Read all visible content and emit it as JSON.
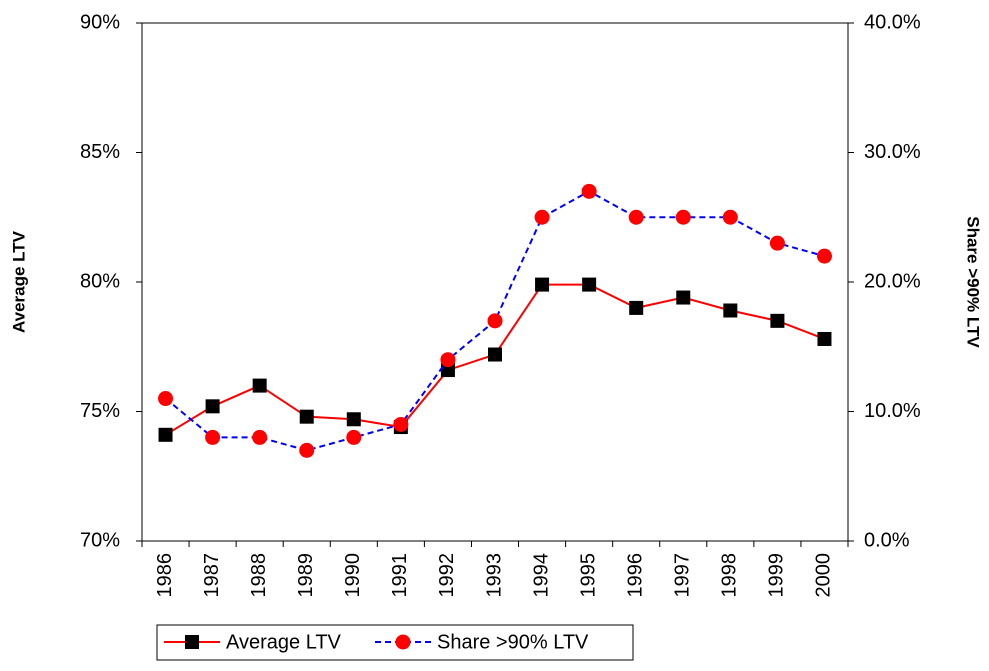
{
  "chart_data": {
    "type": "line",
    "categories": [
      "1986",
      "1987",
      "1988",
      "1989",
      "1990",
      "1991",
      "1992",
      "1993",
      "1994",
      "1995",
      "1996",
      "1997",
      "1998",
      "1999",
      "2000"
    ],
    "y_label": "Average LTV",
    "y2_label": "Share >90% LTV",
    "ylim": [
      70,
      90
    ],
    "yticks": [
      {
        "value": 70,
        "label": "70%"
      },
      {
        "value": 75,
        "label": "75%"
      },
      {
        "value": 80,
        "label": "80%"
      },
      {
        "value": 85,
        "label": "85%"
      },
      {
        "value": 90,
        "label": "90%"
      }
    ],
    "y2lim": [
      0,
      40
    ],
    "y2ticks": [
      {
        "value": 0,
        "label": "0.0%"
      },
      {
        "value": 10,
        "label": "10.0%"
      },
      {
        "value": 20,
        "label": "20.0%"
      },
      {
        "value": 30,
        "label": "30.0%"
      },
      {
        "value": 40,
        "label": "40.0%"
      }
    ],
    "series": [
      {
        "name": "Average LTV",
        "color": "#ff0000",
        "marker_color": "#000000",
        "marker": "square",
        "line_style": "solid",
        "values": [
          74.1,
          75.2,
          76.0,
          74.8,
          74.7,
          74.4,
          76.6,
          77.2,
          79.9,
          79.9,
          79.0,
          79.4,
          78.9,
          78.5,
          77.8
        ]
      },
      {
        "name": "Share >90% LTV",
        "color": "#0000ff",
        "marker_color": "#ff0000",
        "marker": "circle",
        "line_style": "dashed",
        "axis": "y2",
        "values": [
          11,
          8,
          8,
          7,
          8,
          9,
          14,
          17,
          25,
          27,
          25,
          25,
          25,
          23,
          22
        ]
      }
    ],
    "legend": "bottom"
  }
}
